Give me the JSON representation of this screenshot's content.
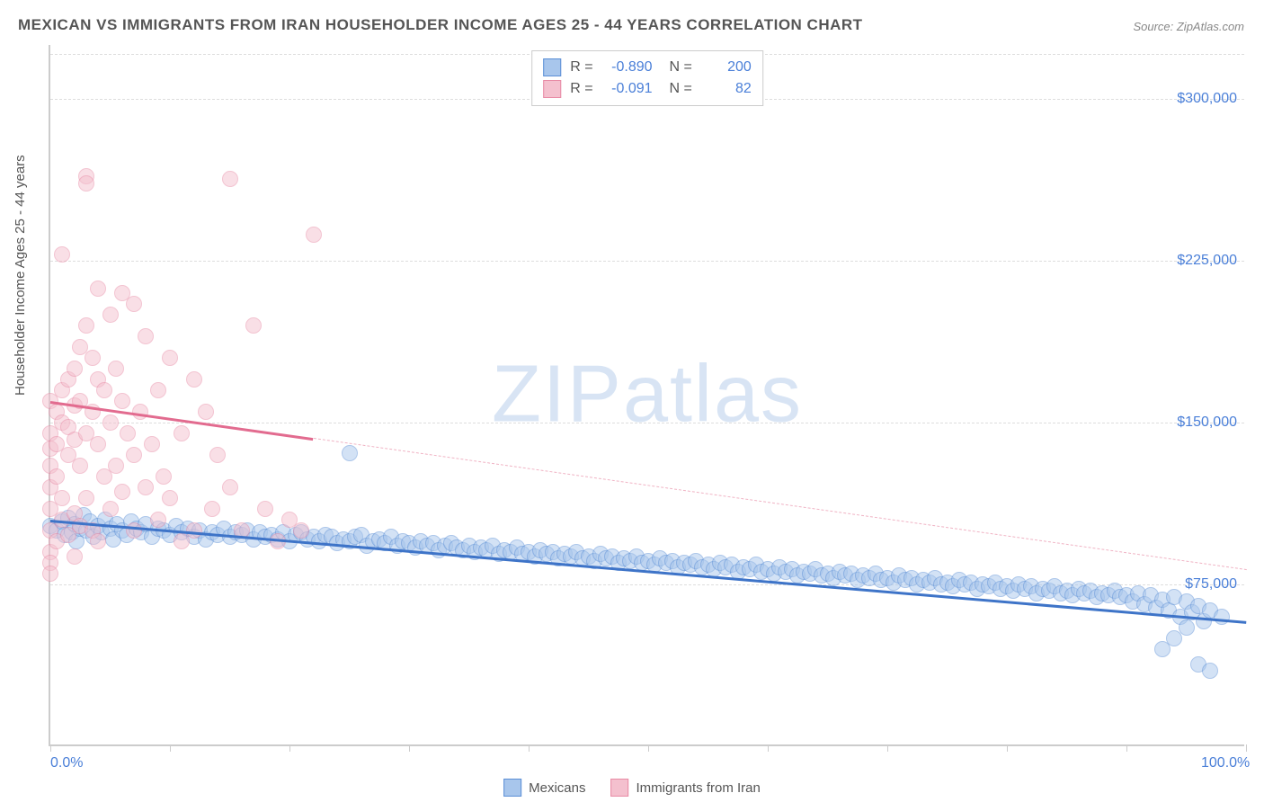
{
  "title": "MEXICAN VS IMMIGRANTS FROM IRAN HOUSEHOLDER INCOME AGES 25 - 44 YEARS CORRELATION CHART",
  "source": "Source: ZipAtlas.com",
  "ylabel": "Householder Income Ages 25 - 44 years",
  "watermark_a": "ZIP",
  "watermark_b": "atlas",
  "chart": {
    "type": "scatter",
    "background_color": "#ffffff",
    "grid_color": "#dddddd",
    "axis_color": "#cccccc",
    "xlim": [
      0,
      100
    ],
    "ylim": [
      0,
      325000
    ],
    "ygrid": [
      75000,
      150000,
      225000,
      300000
    ],
    "ytick_labels": [
      "$75,000",
      "$150,000",
      "$225,000",
      "$300,000"
    ],
    "xticks": [
      0,
      10,
      20,
      30,
      40,
      50,
      60,
      70,
      80,
      90,
      100
    ],
    "xtick_labels": {
      "0": "0.0%",
      "100": "100.0%"
    },
    "tick_label_color": "#4a7fd8",
    "tick_label_fontsize": 16,
    "marker_radius": 9,
    "marker_opacity": 0.5,
    "series": [
      {
        "name": "Mexicans",
        "fill": "#a8c6ec",
        "stroke": "#5b8fd6",
        "R": "-0.890",
        "N": "200",
        "trend": {
          "x1": 0,
          "y1": 105000,
          "x2": 100,
          "y2": 58000,
          "solid_until_x": 100,
          "color": "#3e74c8",
          "width": 3
        },
        "points": [
          [
            0,
            102000
          ],
          [
            0.5,
            100000
          ],
          [
            1,
            104000
          ],
          [
            1.2,
            98000
          ],
          [
            1.5,
            106000
          ],
          [
            1.8,
            99000
          ],
          [
            2,
            103000
          ],
          [
            2.2,
            95000
          ],
          [
            2.5,
            101000
          ],
          [
            2.8,
            107000
          ],
          [
            3,
            100000
          ],
          [
            3.3,
            104000
          ],
          [
            3.6,
            97000
          ],
          [
            4,
            102000
          ],
          [
            4.3,
            99000
          ],
          [
            4.6,
            105000
          ],
          [
            5,
            101000
          ],
          [
            5.3,
            96000
          ],
          [
            5.6,
            103000
          ],
          [
            6,
            100000
          ],
          [
            6.4,
            98000
          ],
          [
            6.8,
            104000
          ],
          [
            7.2,
            101000
          ],
          [
            7.6,
            99000
          ],
          [
            8,
            103000
          ],
          [
            8.5,
            97000
          ],
          [
            9,
            101000
          ],
          [
            9.5,
            100000
          ],
          [
            10,
            98000
          ],
          [
            10.5,
            102000
          ],
          [
            11,
            99000
          ],
          [
            11.5,
            101000
          ],
          [
            12,
            97000
          ],
          [
            12.5,
            100000
          ],
          [
            13,
            96000
          ],
          [
            13.5,
            99000
          ],
          [
            14,
            98000
          ],
          [
            14.5,
            101000
          ],
          [
            15,
            97000
          ],
          [
            15.5,
            99000
          ],
          [
            16,
            98000
          ],
          [
            16.5,
            100000
          ],
          [
            17,
            96000
          ],
          [
            17.5,
            99000
          ],
          [
            18,
            97000
          ],
          [
            18.5,
            98000
          ],
          [
            19,
            96000
          ],
          [
            19.5,
            99000
          ],
          [
            20,
            95000
          ],
          [
            20.5,
            98000
          ],
          [
            21,
            99000
          ],
          [
            21.5,
            96000
          ],
          [
            22,
            97000
          ],
          [
            22.5,
            95000
          ],
          [
            23,
            98000
          ],
          [
            23.5,
            97000
          ],
          [
            24,
            94000
          ],
          [
            24.5,
            96000
          ],
          [
            25,
            95000
          ],
          [
            25.5,
            97000
          ],
          [
            25,
            136000
          ],
          [
            26,
            98000
          ],
          [
            26.5,
            93000
          ],
          [
            27,
            95000
          ],
          [
            27.5,
            96000
          ],
          [
            28,
            94000
          ],
          [
            28.5,
            97000
          ],
          [
            29,
            93000
          ],
          [
            29.5,
            95000
          ],
          [
            30,
            94000
          ],
          [
            30.5,
            92000
          ],
          [
            31,
            95000
          ],
          [
            31.5,
            93000
          ],
          [
            32,
            94000
          ],
          [
            32.5,
            91000
          ],
          [
            33,
            93000
          ],
          [
            33.5,
            94000
          ],
          [
            34,
            92000
          ],
          [
            34.5,
            91000
          ],
          [
            35,
            93000
          ],
          [
            35.5,
            90000
          ],
          [
            36,
            92000
          ],
          [
            36.5,
            91000
          ],
          [
            37,
            93000
          ],
          [
            37.5,
            89000
          ],
          [
            38,
            91000
          ],
          [
            38.5,
            90000
          ],
          [
            39,
            92000
          ],
          [
            39.5,
            89000
          ],
          [
            40,
            90000
          ],
          [
            40.5,
            88000
          ],
          [
            41,
            91000
          ],
          [
            41.5,
            89000
          ],
          [
            42,
            90000
          ],
          [
            42.5,
            87000
          ],
          [
            43,
            89000
          ],
          [
            43.5,
            88000
          ],
          [
            44,
            90000
          ],
          [
            44.5,
            87000
          ],
          [
            45,
            88000
          ],
          [
            45.5,
            86000
          ],
          [
            46,
            89000
          ],
          [
            46.5,
            87000
          ],
          [
            47,
            88000
          ],
          [
            47.5,
            85000
          ],
          [
            48,
            87000
          ],
          [
            48.5,
            86000
          ],
          [
            49,
            88000
          ],
          [
            49.5,
            85000
          ],
          [
            50,
            86000
          ],
          [
            50.5,
            84000
          ],
          [
            51,
            87000
          ],
          [
            51.5,
            85000
          ],
          [
            52,
            86000
          ],
          [
            52.5,
            83000
          ],
          [
            53,
            85000
          ],
          [
            53.5,
            84000
          ],
          [
            54,
            86000
          ],
          [
            54.5,
            83000
          ],
          [
            55,
            84000
          ],
          [
            55.5,
            82000
          ],
          [
            56,
            85000
          ],
          [
            56.5,
            83000
          ],
          [
            57,
            84000
          ],
          [
            57.5,
            81000
          ],
          [
            58,
            83000
          ],
          [
            58.5,
            82000
          ],
          [
            59,
            84000
          ],
          [
            59.5,
            81000
          ],
          [
            60,
            82000
          ],
          [
            60.5,
            80000
          ],
          [
            61,
            83000
          ],
          [
            61.5,
            81000
          ],
          [
            62,
            82000
          ],
          [
            62.5,
            79000
          ],
          [
            63,
            81000
          ],
          [
            63.5,
            80000
          ],
          [
            64,
            82000
          ],
          [
            64.5,
            79000
          ],
          [
            65,
            80000
          ],
          [
            65.5,
            78000
          ],
          [
            66,
            81000
          ],
          [
            66.5,
            79000
          ],
          [
            67,
            80000
          ],
          [
            67.5,
            77000
          ],
          [
            68,
            79000
          ],
          [
            68.5,
            78000
          ],
          [
            69,
            80000
          ],
          [
            69.5,
            77000
          ],
          [
            70,
            78000
          ],
          [
            70.5,
            76000
          ],
          [
            71,
            79000
          ],
          [
            71.5,
            77000
          ],
          [
            72,
            78000
          ],
          [
            72.5,
            75000
          ],
          [
            73,
            77000
          ],
          [
            73.5,
            76000
          ],
          [
            74,
            78000
          ],
          [
            74.5,
            75000
          ],
          [
            75,
            76000
          ],
          [
            75.5,
            74000
          ],
          [
            76,
            77000
          ],
          [
            76.5,
            75000
          ],
          [
            77,
            76000
          ],
          [
            77.5,
            73000
          ],
          [
            78,
            75000
          ],
          [
            78.5,
            74000
          ],
          [
            79,
            76000
          ],
          [
            79.5,
            73000
          ],
          [
            80,
            74000
          ],
          [
            80.5,
            72000
          ],
          [
            81,
            75000
          ],
          [
            81.5,
            73000
          ],
          [
            82,
            74000
          ],
          [
            82.5,
            71000
          ],
          [
            83,
            73000
          ],
          [
            83.5,
            72000
          ],
          [
            84,
            74000
          ],
          [
            84.5,
            71000
          ],
          [
            85,
            72000
          ],
          [
            85.5,
            70000
          ],
          [
            86,
            73000
          ],
          [
            86.5,
            71000
          ],
          [
            87,
            72000
          ],
          [
            87.5,
            69000
          ],
          [
            88,
            71000
          ],
          [
            88.5,
            70000
          ],
          [
            89,
            72000
          ],
          [
            89.5,
            69000
          ],
          [
            90,
            70000
          ],
          [
            90.5,
            67000
          ],
          [
            91,
            71000
          ],
          [
            91.5,
            66000
          ],
          [
            92,
            70000
          ],
          [
            92.5,
            64000
          ],
          [
            93,
            68000
          ],
          [
            93.5,
            63000
          ],
          [
            94,
            69000
          ],
          [
            94.5,
            60000
          ],
          [
            95,
            67000
          ],
          [
            95,
            55000
          ],
          [
            95.5,
            62000
          ],
          [
            96,
            38000
          ],
          [
            96,
            65000
          ],
          [
            96.5,
            58000
          ],
          [
            97,
            35000
          ],
          [
            97,
            63000
          ],
          [
            98,
            60000
          ],
          [
            94,
            50000
          ],
          [
            93,
            45000
          ]
        ]
      },
      {
        "name": "Immigrants from Iran",
        "fill": "#f4c0ce",
        "stroke": "#e88aa5",
        "R": "-0.091",
        "N": "82",
        "trend": {
          "x1": 0,
          "y1": 160000,
          "x2": 100,
          "y2": 82000,
          "solid_until_x": 22,
          "color": "#e26b8f",
          "width": 3,
          "dash_color": "#f0b3c4"
        },
        "points": [
          [
            0,
            160000
          ],
          [
            0,
            145000
          ],
          [
            0,
            138000
          ],
          [
            0,
            130000
          ],
          [
            0,
            120000
          ],
          [
            0,
            110000
          ],
          [
            0,
            100000
          ],
          [
            0,
            90000
          ],
          [
            0,
            85000
          ],
          [
            0,
            80000
          ],
          [
            0.5,
            155000
          ],
          [
            0.5,
            140000
          ],
          [
            0.5,
            125000
          ],
          [
            0.5,
            95000
          ],
          [
            1,
            228000
          ],
          [
            1,
            165000
          ],
          [
            1,
            150000
          ],
          [
            1,
            115000
          ],
          [
            1,
            105000
          ],
          [
            1.5,
            170000
          ],
          [
            1.5,
            148000
          ],
          [
            1.5,
            135000
          ],
          [
            1.5,
            98000
          ],
          [
            2,
            175000
          ],
          [
            2,
            158000
          ],
          [
            2,
            142000
          ],
          [
            2,
            108000
          ],
          [
            2,
            88000
          ],
          [
            2.5,
            185000
          ],
          [
            2.5,
            160000
          ],
          [
            2.5,
            130000
          ],
          [
            2.5,
            102000
          ],
          [
            3,
            264000
          ],
          [
            3,
            261000
          ],
          [
            3,
            195000
          ],
          [
            3,
            145000
          ],
          [
            3,
            115000
          ],
          [
            3.5,
            180000
          ],
          [
            3.5,
            155000
          ],
          [
            3.5,
            100000
          ],
          [
            4,
            212000
          ],
          [
            4,
            170000
          ],
          [
            4,
            140000
          ],
          [
            4,
            95000
          ],
          [
            4.5,
            165000
          ],
          [
            4.5,
            125000
          ],
          [
            5,
            200000
          ],
          [
            5,
            150000
          ],
          [
            5,
            110000
          ],
          [
            5.5,
            175000
          ],
          [
            5.5,
            130000
          ],
          [
            6,
            210000
          ],
          [
            6,
            160000
          ],
          [
            6,
            118000
          ],
          [
            6.5,
            145000
          ],
          [
            7,
            205000
          ],
          [
            7,
            135000
          ],
          [
            7,
            100000
          ],
          [
            7.5,
            155000
          ],
          [
            8,
            190000
          ],
          [
            8,
            120000
          ],
          [
            8.5,
            140000
          ],
          [
            9,
            165000
          ],
          [
            9,
            105000
          ],
          [
            9.5,
            125000
          ],
          [
            10,
            180000
          ],
          [
            10,
            115000
          ],
          [
            11,
            145000
          ],
          [
            11,
            95000
          ],
          [
            12,
            170000
          ],
          [
            12,
            100000
          ],
          [
            13,
            155000
          ],
          [
            13.5,
            110000
          ],
          [
            14,
            135000
          ],
          [
            15,
            263000
          ],
          [
            15,
            120000
          ],
          [
            16,
            100000
          ],
          [
            17,
            195000
          ],
          [
            18,
            110000
          ],
          [
            19,
            95000
          ],
          [
            20,
            105000
          ],
          [
            21,
            100000
          ],
          [
            22,
            237000
          ]
        ]
      }
    ]
  },
  "bottom_legend": [
    {
      "label": "Mexicans",
      "fill": "#a8c6ec",
      "stroke": "#5b8fd6"
    },
    {
      "label": "Immigrants from Iran",
      "fill": "#f4c0ce",
      "stroke": "#e88aa5"
    }
  ]
}
